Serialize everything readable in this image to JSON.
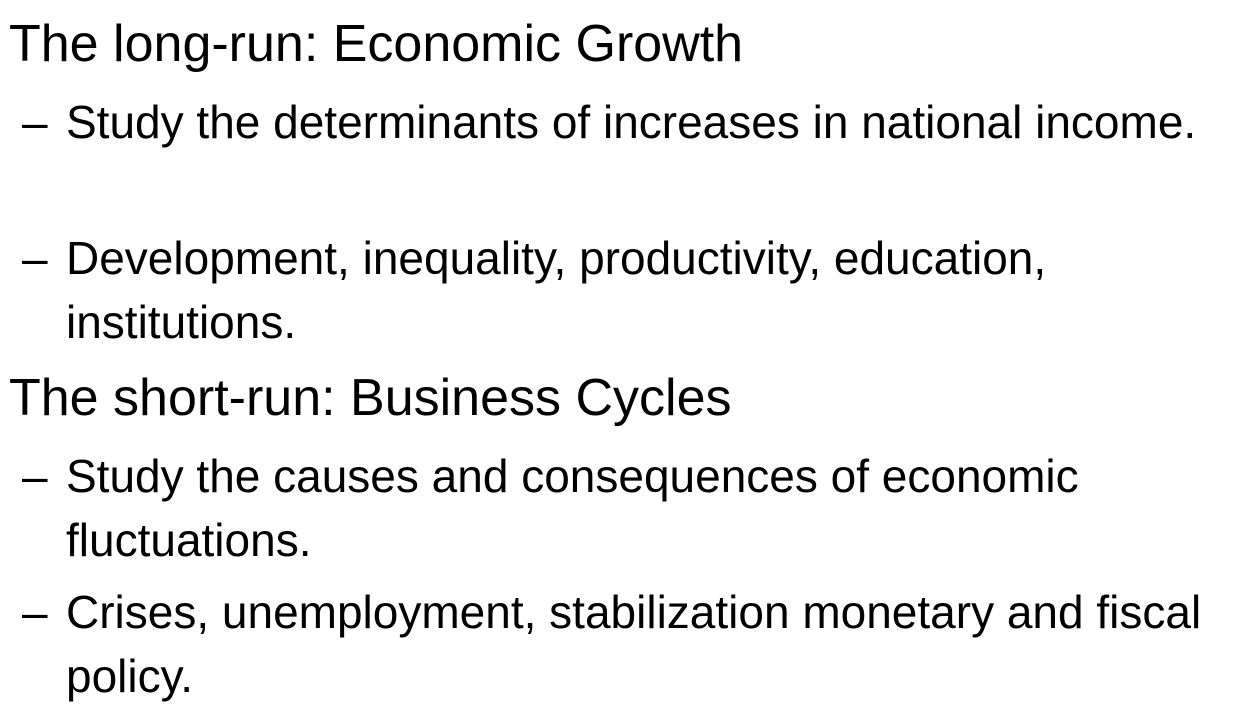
{
  "sections": [
    {
      "heading": "The long-run: Economic Growth",
      "bullets": [
        {
          "marker": "–",
          "text": "Study the determinants of increases in national income."
        },
        {
          "marker": "–",
          "text": "Development, inequality, productivity, education, institutions."
        }
      ]
    },
    {
      "heading": "The short-run: Business Cycles",
      "bullets": [
        {
          "marker": "–",
          "text": "Study the causes and consequences of economic fluctuations."
        },
        {
          "marker": "–",
          "text": "Crises, unemployment, stabilization monetary and fiscal policy."
        }
      ]
    }
  ]
}
